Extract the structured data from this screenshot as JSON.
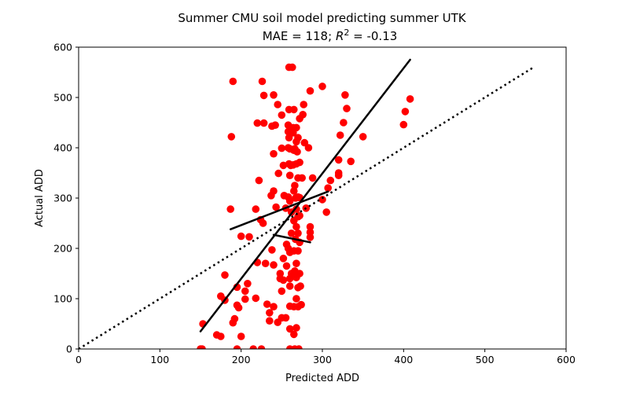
{
  "chart_data": {
    "type": "scatter",
    "title_line1": "Summer CMU soil model predicting summer UTK",
    "title_mae": "MAE = 118; ",
    "title_r2_symbol": "R",
    "title_r2_exp": "2",
    "title_r2_value": " = -0.13",
    "xlabel": "Predicted ADD",
    "ylabel": "Actual ADD",
    "xlim": [
      0,
      600
    ],
    "ylim": [
      0,
      600
    ],
    "xticks": [
      "0",
      "100",
      "200",
      "300",
      "400",
      "500",
      "600"
    ],
    "yticks": [
      "0",
      "100",
      "200",
      "300",
      "400",
      "500",
      "600"
    ],
    "grid": false,
    "colors": {
      "points": "#ff0000",
      "lines": "#000000",
      "axes": "#000000"
    },
    "reference_line": {
      "style": "dotted",
      "x": [
        0,
        560
      ],
      "y": [
        0,
        560
      ]
    },
    "fit_lines": [
      {
        "name": "overall fit",
        "x": [
          150,
          408
        ],
        "y": [
          35,
          575
        ]
      },
      {
        "name": "segment 1",
        "x": [
          187,
          307
        ],
        "y": [
          238,
          313
        ]
      },
      {
        "name": "segment 2",
        "x": [
          240,
          285
        ],
        "y": [
          227,
          212
        ]
      }
    ],
    "points": [
      [
        150,
        0
      ],
      [
        152,
        0
      ],
      [
        153,
        50
      ],
      [
        170,
        28
      ],
      [
        175,
        25
      ],
      [
        175,
        105
      ],
      [
        180,
        97
      ],
      [
        180,
        147
      ],
      [
        187,
        278
      ],
      [
        188,
        422
      ],
      [
        190,
        532
      ],
      [
        190,
        52
      ],
      [
        192,
        60
      ],
      [
        195,
        87
      ],
      [
        195,
        123
      ],
      [
        195,
        0
      ],
      [
        197,
        82
      ],
      [
        200,
        25
      ],
      [
        200,
        224
      ],
      [
        205,
        99
      ],
      [
        205,
        115
      ],
      [
        208,
        130
      ],
      [
        210,
        223
      ],
      [
        215,
        0
      ],
      [
        218,
        278
      ],
      [
        218,
        101
      ],
      [
        220,
        449
      ],
      [
        220,
        172
      ],
      [
        222,
        335
      ],
      [
        224,
        257
      ],
      [
        225,
        0
      ],
      [
        226,
        532
      ],
      [
        227,
        250
      ],
      [
        228,
        504
      ],
      [
        228,
        449
      ],
      [
        230,
        170
      ],
      [
        232,
        89
      ],
      [
        235,
        56
      ],
      [
        235,
        72
      ],
      [
        237,
        305
      ],
      [
        238,
        197
      ],
      [
        238,
        443
      ],
      [
        240,
        84
      ],
      [
        240,
        314
      ],
      [
        240,
        388
      ],
      [
        240,
        505
      ],
      [
        240,
        167
      ],
      [
        242,
        445
      ],
      [
        243,
        282
      ],
      [
        245,
        486
      ],
      [
        245,
        53
      ],
      [
        246,
        349
      ],
      [
        248,
        150
      ],
      [
        248,
        140
      ],
      [
        250,
        115
      ],
      [
        250,
        62
      ],
      [
        250,
        465
      ],
      [
        250,
        399
      ],
      [
        252,
        365
      ],
      [
        252,
        180
      ],
      [
        252,
        137
      ],
      [
        253,
        305
      ],
      [
        255,
        62
      ],
      [
        255,
        280
      ],
      [
        256,
        208
      ],
      [
        256,
        165
      ],
      [
        258,
        400
      ],
      [
        258,
        445
      ],
      [
        258,
        432
      ],
      [
        258,
        302
      ],
      [
        258,
        200
      ],
      [
        259,
        560
      ],
      [
        259,
        476
      ],
      [
        259,
        420
      ],
      [
        259,
        368
      ],
      [
        260,
        398
      ],
      [
        260,
        345
      ],
      [
        260,
        294
      ],
      [
        260,
        192
      ],
      [
        260,
        140
      ],
      [
        260,
        125
      ],
      [
        260,
        85
      ],
      [
        260,
        40
      ],
      [
        260,
        0
      ],
      [
        261,
        365
      ],
      [
        262,
        150
      ],
      [
        262,
        272
      ],
      [
        262,
        230
      ],
      [
        263,
        560
      ],
      [
        264,
        440
      ],
      [
        264,
        430
      ],
      [
        264,
        366
      ],
      [
        265,
        476
      ],
      [
        265,
        395
      ],
      [
        265,
        314
      ],
      [
        265,
        255
      ],
      [
        265,
        195
      ],
      [
        265,
        84
      ],
      [
        265,
        29
      ],
      [
        266,
        398
      ],
      [
        266,
        325
      ],
      [
        266,
        155
      ],
      [
        266,
        0
      ],
      [
        267,
        300
      ],
      [
        267,
        218
      ],
      [
        268,
        440
      ],
      [
        268,
        412
      ],
      [
        268,
        368
      ],
      [
        268,
        278
      ],
      [
        268,
        243
      ],
      [
        268,
        170
      ],
      [
        268,
        142
      ],
      [
        268,
        100
      ],
      [
        268,
        42
      ],
      [
        269,
        392
      ],
      [
        270,
        420
      ],
      [
        270,
        340
      ],
      [
        270,
        302
      ],
      [
        270,
        263
      ],
      [
        270,
        230
      ],
      [
        270,
        195
      ],
      [
        270,
        122
      ],
      [
        270,
        84
      ],
      [
        271,
        0
      ],
      [
        272,
        458
      ],
      [
        272,
        371
      ],
      [
        272,
        301
      ],
      [
        272,
        265
      ],
      [
        272,
        212
      ],
      [
        272,
        150
      ],
      [
        273,
        125
      ],
      [
        274,
        88
      ],
      [
        275,
        340
      ],
      [
        276,
        466
      ],
      [
        277,
        486
      ],
      [
        278,
        410
      ],
      [
        280,
        280
      ],
      [
        283,
        400
      ],
      [
        285,
        243
      ],
      [
        285,
        232
      ],
      [
        285,
        222
      ],
      [
        285,
        513
      ],
      [
        288,
        340
      ],
      [
        300,
        522
      ],
      [
        300,
        297
      ],
      [
        305,
        272
      ],
      [
        307,
        320
      ],
      [
        310,
        335
      ],
      [
        320,
        376
      ],
      [
        320,
        345
      ],
      [
        320,
        350
      ],
      [
        322,
        425
      ],
      [
        326,
        450
      ],
      [
        328,
        505
      ],
      [
        330,
        478
      ],
      [
        335,
        373
      ],
      [
        350,
        422
      ],
      [
        400,
        446
      ],
      [
        402,
        472
      ],
      [
        408,
        497
      ]
    ]
  }
}
